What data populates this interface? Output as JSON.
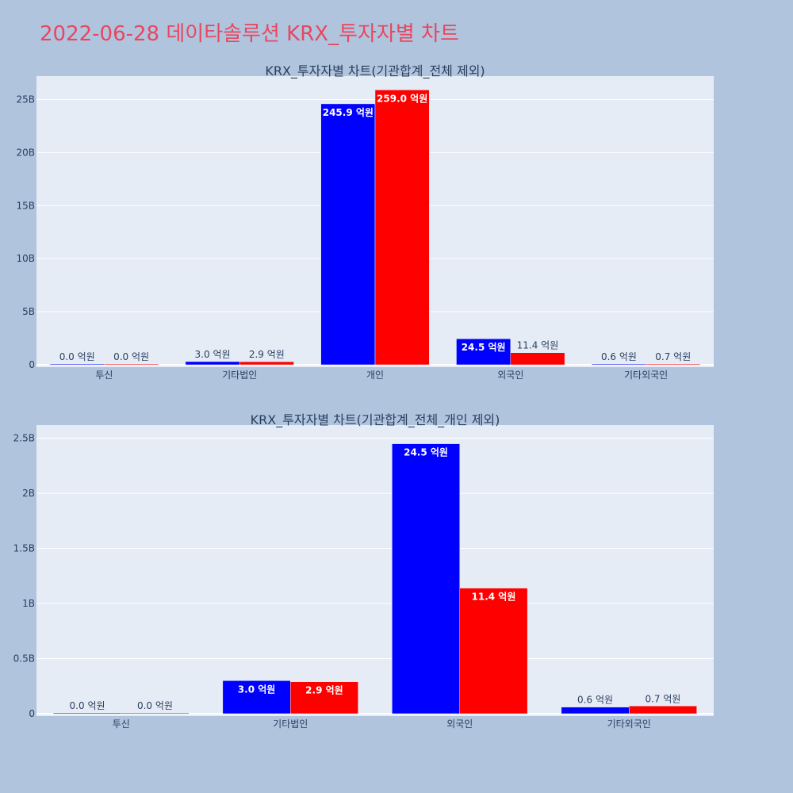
{
  "page": {
    "title": "2022-06-28 데이타솔루션 KRX_투자자별 차트",
    "background": "#b0c4de",
    "title_color": "#e8475f",
    "plot_background": "#e5ecf6"
  },
  "chart_data": [
    {
      "type": "bar",
      "title": "KRX_투자자별 차트(기관합계_전체 제외)",
      "categories": [
        "투신",
        "기타법인",
        "개인",
        "외국인",
        "기타외국인"
      ],
      "series": [
        {
          "color": "#0000ff",
          "values": [
            0,
            300000000,
            24590000000,
            2450000000,
            60000000
          ],
          "labels": [
            "0.0 억원",
            "3.0 억원",
            "245.9 억원",
            "24.5 억원",
            "0.6 억원"
          ]
        },
        {
          "color": "#ff0000",
          "values": [
            0,
            290000000,
            25900000000,
            1140000000,
            70000000
          ],
          "labels": [
            "0.0 억원",
            "2.9 억원",
            "259.0 억원",
            "11.4 억원",
            "0.7 억원"
          ]
        }
      ],
      "ylim": [
        0,
        27200000000
      ],
      "yticks": [
        0,
        5000000000,
        10000000000,
        15000000000,
        20000000000,
        25000000000
      ],
      "ytick_labels": [
        "0",
        "5B",
        "10B",
        "15B",
        "20B",
        "25B"
      ],
      "grid": true
    },
    {
      "type": "bar",
      "title": "KRX_투자자별 차트(기관합계_전체_개인 제외)",
      "categories": [
        "투신",
        "기타법인",
        "외국인",
        "기타외국인"
      ],
      "series": [
        {
          "color": "#0000ff",
          "values": [
            0,
            300000000,
            2450000000,
            60000000
          ],
          "labels": [
            "0.0 억원",
            "3.0 억원",
            "24.5 억원",
            "0.6 억원"
          ]
        },
        {
          "color": "#ff0000",
          "values": [
            0,
            290000000,
            1140000000,
            70000000
          ],
          "labels": [
            "0.0 억원",
            "2.9 억원",
            "11.4 억원",
            "0.7 억원"
          ]
        }
      ],
      "ylim": [
        0,
        2620000000
      ],
      "yticks": [
        0,
        500000000,
        1000000000,
        1500000000,
        2000000000,
        2500000000
      ],
      "ytick_labels": [
        "0",
        "0.5B",
        "1B",
        "1.5B",
        "2B",
        "2.5B"
      ],
      "grid": true
    }
  ]
}
